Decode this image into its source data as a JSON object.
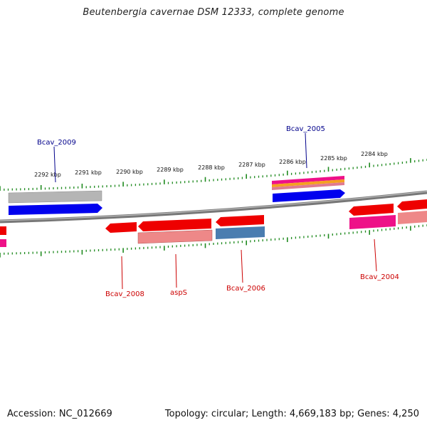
{
  "title": "Beutenbergia cavernae DSM 12333, complete genome",
  "footer": {
    "accession": "Accession: NC_012669",
    "summary": "Topology: circular; Length: 4,669,183 bp; Genes: 4,250"
  },
  "scale_labels": [
    "2292 kbp",
    "2291 kbp",
    "2290 kbp",
    "2289 kbp",
    "2288 kbp",
    "2287 kbp",
    "2286 kbp",
    "2285 kbp",
    "2284 kbp"
  ],
  "gene_labels": {
    "forward": [
      "Bcav_2009",
      "Bcav_2005"
    ],
    "reverse": [
      "Bcav_2008",
      "aspS",
      "Bcav_2006",
      "Bcav_2004"
    ]
  },
  "colors": {
    "backbone": "#7a7a7a",
    "tick": "#1f8a1f",
    "cds_forward": "#0000ee",
    "cds_reverse": "#ee0000",
    "gene_grey": "#b0b0b0",
    "gene_pink": "#ee8888",
    "rna_magenta": "#ee1188",
    "steel": "#4a7db0",
    "label_forward": "#00008b",
    "label_reverse": "#cc0000"
  }
}
